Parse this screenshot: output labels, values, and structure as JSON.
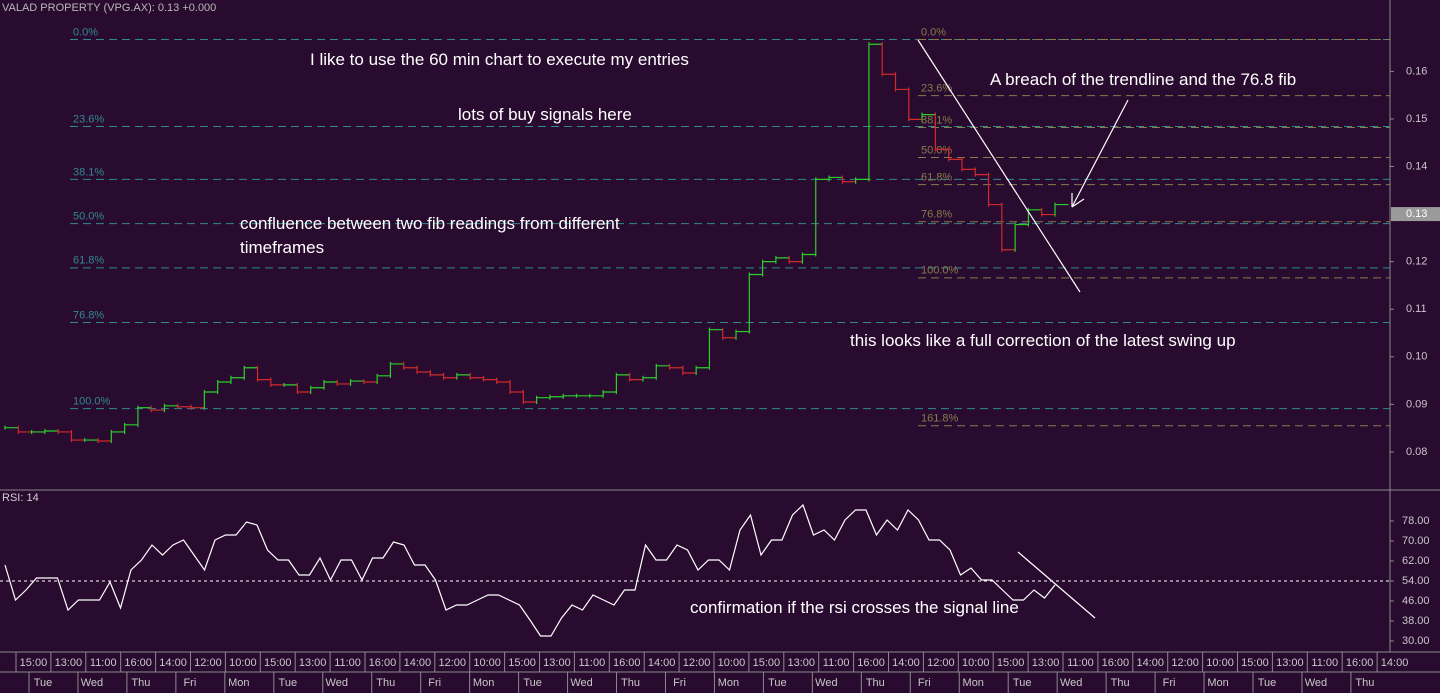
{
  "chart_data": [
    {
      "type": "step",
      "title": "VALAD PROPERTY  (VPG.AX): 0.13 +0.000",
      "values": [
        0.0851,
        0.0842,
        0.0842,
        0.0844,
        0.0842,
        0.0825,
        0.0825,
        0.0823,
        0.0842,
        0.0857,
        0.0893,
        0.0888,
        0.0897,
        0.0895,
        0.0893,
        0.0926,
        0.0947,
        0.0956,
        0.0977,
        0.0952,
        0.0941,
        0.0941,
        0.0926,
        0.0935,
        0.0947,
        0.0943,
        0.0949,
        0.0947,
        0.096,
        0.0985,
        0.0977,
        0.0968,
        0.0962,
        0.0956,
        0.0962,
        0.0956,
        0.0952,
        0.0947,
        0.0926,
        0.0905,
        0.0914,
        0.0916,
        0.0918,
        0.0918,
        0.0918,
        0.0926,
        0.0962,
        0.0952,
        0.0956,
        0.0981,
        0.0977,
        0.0966,
        0.0977,
        0.1057,
        0.104,
        0.1053,
        0.1173,
        0.12,
        0.1208,
        0.12,
        0.1215,
        0.1373,
        0.1377,
        0.1368,
        0.1373,
        0.1657,
        0.1594,
        0.1562,
        0.1499,
        0.1509,
        0.1436,
        0.1415,
        0.1394,
        0.1383,
        0.132,
        0.1225,
        0.1278,
        0.1309,
        0.1299,
        0.132
      ],
      "up_color": "#2ad02a",
      "down_color": "#d02a2a",
      "ylim": [
        0.072,
        0.175
      ],
      "yticks": [
        0.08,
        0.09,
        {
          "value": 0.1,
          "label": "0.10"
        },
        0.11,
        0.12,
        0.14,
        0.15,
        0.16
      ],
      "last_price": 0.13,
      "fib_sets": [
        {
          "color": "#2f8a8e",
          "levels": [
            {
              "value": 0.1667,
              "label": "0.0%"
            },
            {
              "value": 0.1484,
              "label": "23.6%"
            },
            {
              "value": 0.1373,
              "label": "38.1%"
            },
            {
              "value": 0.128,
              "label": "50.0%"
            },
            {
              "value": 0.1187,
              "label": "61.8%"
            },
            {
              "value": 0.1072,
              "label": "76.8%"
            },
            {
              "value": 0.0891,
              "label": "100.0%"
            }
          ]
        },
        {
          "color": "#8a7a4a",
          "levels": [
            {
              "value": 0.1667,
              "label": "0.0%"
            },
            {
              "value": 0.1549,
              "label": "23.6%"
            },
            {
              "value": 0.1482,
              "label": "38.1%"
            },
            {
              "value": 0.1419,
              "label": "50.0%"
            },
            {
              "value": 0.1362,
              "label": "61.8%"
            },
            {
              "value": 0.1284,
              "label": "76.8%"
            },
            {
              "value": 0.1166,
              "label": "100.0%"
            },
            {
              "value": 0.0855,
              "label": "161.8%"
            }
          ]
        }
      ]
    },
    {
      "type": "line",
      "title": "RSI: 14",
      "values": [
        60.4,
        46.4,
        50.4,
        55.2,
        55.2,
        55.2,
        42.4,
        46.4,
        46.4,
        46.4,
        53.6,
        43.2,
        58.4,
        62.4,
        68.4,
        64.4,
        68.4,
        70.4,
        64.4,
        58.4,
        70.4,
        72.4,
        72.4,
        77.6,
        76.4,
        66.4,
        62.4,
        62.4,
        56.4,
        56.4,
        63.2,
        54.4,
        62.4,
        62.4,
        54.4,
        63.2,
        63.2,
        69.6,
        68.4,
        60.4,
        60.4,
        54.4,
        42.4,
        44.4,
        44.4,
        46.4,
        48.4,
        48.4,
        46.4,
        44.4,
        38.4,
        32,
        32,
        39.2,
        44.4,
        42.4,
        48.4,
        46.4,
        44.4,
        50.4,
        50.4,
        68.4,
        62.4,
        62.4,
        68.4,
        66.4,
        58.4,
        62.4,
        62.4,
        58.4,
        74.4,
        80.4,
        64.4,
        70.4,
        70.4,
        80.4,
        84.4,
        72.4,
        74.4,
        70.4,
        78.4,
        82.4,
        82.4,
        72.4,
        78.4,
        74.4,
        82.4,
        78.4,
        70.4,
        70.4,
        66.4,
        56.4,
        59.2,
        54.4,
        54.4,
        50.4,
        46.4,
        46.4,
        50.4,
        47.2,
        52.4
      ],
      "color": "#ffffff",
      "ylim": [
        26.4,
        89.6
      ],
      "yticks": [
        {
          "value": 30,
          "label": "30.00"
        },
        {
          "value": 38,
          "label": "38.00"
        },
        {
          "value": 46,
          "label": "46.00"
        },
        {
          "value": 54,
          "label": "54.00"
        },
        {
          "value": 62,
          "label": "62.00"
        },
        {
          "value": 70,
          "label": "70.00"
        },
        {
          "value": 78,
          "label": "78.00"
        }
      ],
      "signal_line": 54
    }
  ],
  "time_axis": {
    "hours": [
      "15:00",
      "13:00",
      "11:00",
      "16:00",
      "14:00",
      "12:00",
      "10:00",
      "15:00",
      "13:00",
      "11:00",
      "16:00",
      "14:00",
      "12:00",
      "10:00",
      "15:00",
      "13:00",
      "11:00",
      "16:00",
      "14:00",
      "12:00",
      "10:00",
      "15:00",
      "13:00",
      "11:00",
      "16:00",
      "14:00",
      "12:00",
      "10:00",
      "15:00",
      "13:00",
      "11:00",
      "16:00",
      "14:00",
      "12:00",
      "10:00",
      "15:00",
      "13:00",
      "11:00",
      "16:00",
      "14:00"
    ],
    "days": [
      "Tue",
      "Wed",
      "Thu",
      "Fri",
      "Mon",
      "Tue",
      "Wed",
      "Thu",
      "Fri",
      "Mon",
      "Tue",
      "Wed",
      "Thu",
      "Fri",
      "Mon",
      "Tue",
      "Wed",
      "Thu",
      "Fri",
      "Mon",
      "Tue",
      "Wed",
      "Thu",
      "Fri",
      "Mon",
      "Tue",
      "Wed",
      "Thu"
    ]
  },
  "annotations": [
    "I like to use the 60 min chart to execute my entries",
    "lots of buy signals here",
    "confluence between two fib readings from different timeframes",
    "A breach of the trendline and the 76.8 fib",
    "this looks like a full correction of the latest swing up",
    "confirmation if the rsi crosses the signal line"
  ]
}
